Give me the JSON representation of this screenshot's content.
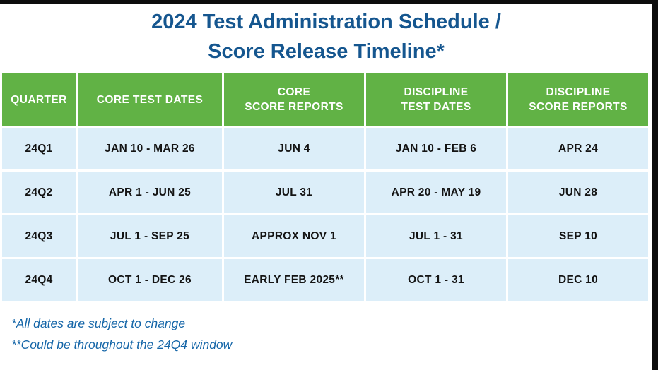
{
  "page": {
    "title_line1": "2024 Test Administration Schedule /",
    "title_line2": "Score Release Timeline*"
  },
  "colors": {
    "header_green": "#61b245",
    "cell_light_blue": "#dceef9",
    "title_blue": "#15568f",
    "footnote_blue": "#1566a8",
    "frame_black": "#0d0d0d"
  },
  "table": {
    "headers": [
      "QUARTER",
      "CORE TEST DATES",
      "CORE\nSCORE REPORTS",
      "DISCIPLINE\nTEST DATES",
      "DISCIPLINE\nSCORE REPORTS"
    ],
    "rows": [
      {
        "quarter": "24Q1",
        "core_test_dates": "JAN 10 - MAR 26",
        "core_score_reports": "JUN 4",
        "discipline_test_dates": "JAN 10 - FEB 6",
        "discipline_score_reports": "APR 24"
      },
      {
        "quarter": "24Q2",
        "core_test_dates": "APR 1 - JUN 25",
        "core_score_reports": "JUL 31",
        "discipline_test_dates": "APR 20 - MAY 19",
        "discipline_score_reports": "JUN 28"
      },
      {
        "quarter": "24Q3",
        "core_test_dates": "JUL 1 - SEP 25",
        "core_score_reports": "APPROX NOV 1",
        "discipline_test_dates": "JUL 1 - 31",
        "discipline_score_reports": "SEP 10"
      },
      {
        "quarter": "24Q4",
        "core_test_dates": "OCT 1 - DEC 26",
        "core_score_reports": "EARLY FEB 2025**",
        "discipline_test_dates": "OCT 1 - 31",
        "discipline_score_reports": "DEC 10"
      }
    ]
  },
  "footnotes": {
    "note1": "*All dates are subject to change",
    "note2": "**Could be throughout the 24Q4 window"
  }
}
